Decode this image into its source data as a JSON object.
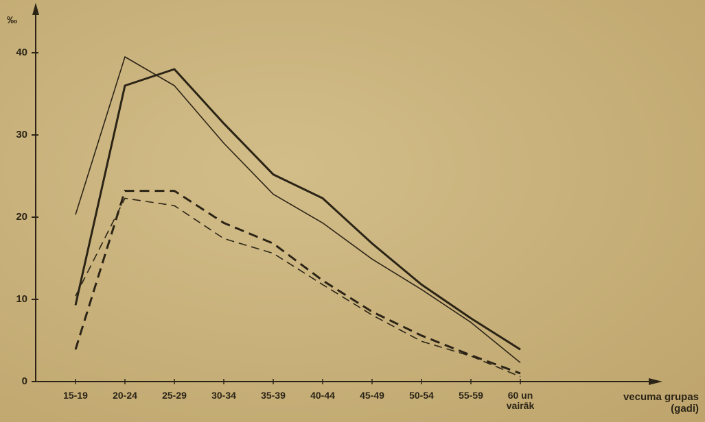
{
  "chart_data": {
    "type": "line",
    "ylabel": "‰",
    "xlabel": "vecuma grupas (gadi)",
    "categories": [
      "15-19",
      "20-24",
      "25-29",
      "30-34",
      "35-39",
      "40-44",
      "45-49",
      "50-54",
      "55-59",
      "60 un vairāk"
    ],
    "series": [
      {
        "color": "#2b2416",
        "width": 1.6,
        "dash": "none",
        "values": [
          20.3,
          39.5,
          36,
          29,
          22.8,
          19.3,
          14.9,
          11.2,
          7.2,
          2.3
        ]
      },
      {
        "color": "#2b2416",
        "width": 3,
        "dash": "none",
        "values": [
          9.3,
          36,
          38,
          31.4,
          25.2,
          22.3,
          16.8,
          11.8,
          7.7,
          3.9
        ]
      },
      {
        "color": "#2b2416",
        "width": 3,
        "dash": "14 8",
        "values": [
          3.9,
          23.2,
          23.2,
          19.3,
          16.8,
          12.3,
          8.5,
          5.6,
          3.2,
          1
        ]
      },
      {
        "color": "#2b2416",
        "width": 1.6,
        "dash": "12 7",
        "values": [
          10.4,
          22.3,
          21.4,
          17.4,
          15.6,
          11.8,
          8.1,
          4.9,
          3.1,
          0.6
        ]
      }
    ],
    "ylim": [
      0,
      45
    ],
    "yticks": [
      0,
      10,
      20,
      30,
      40
    ]
  }
}
